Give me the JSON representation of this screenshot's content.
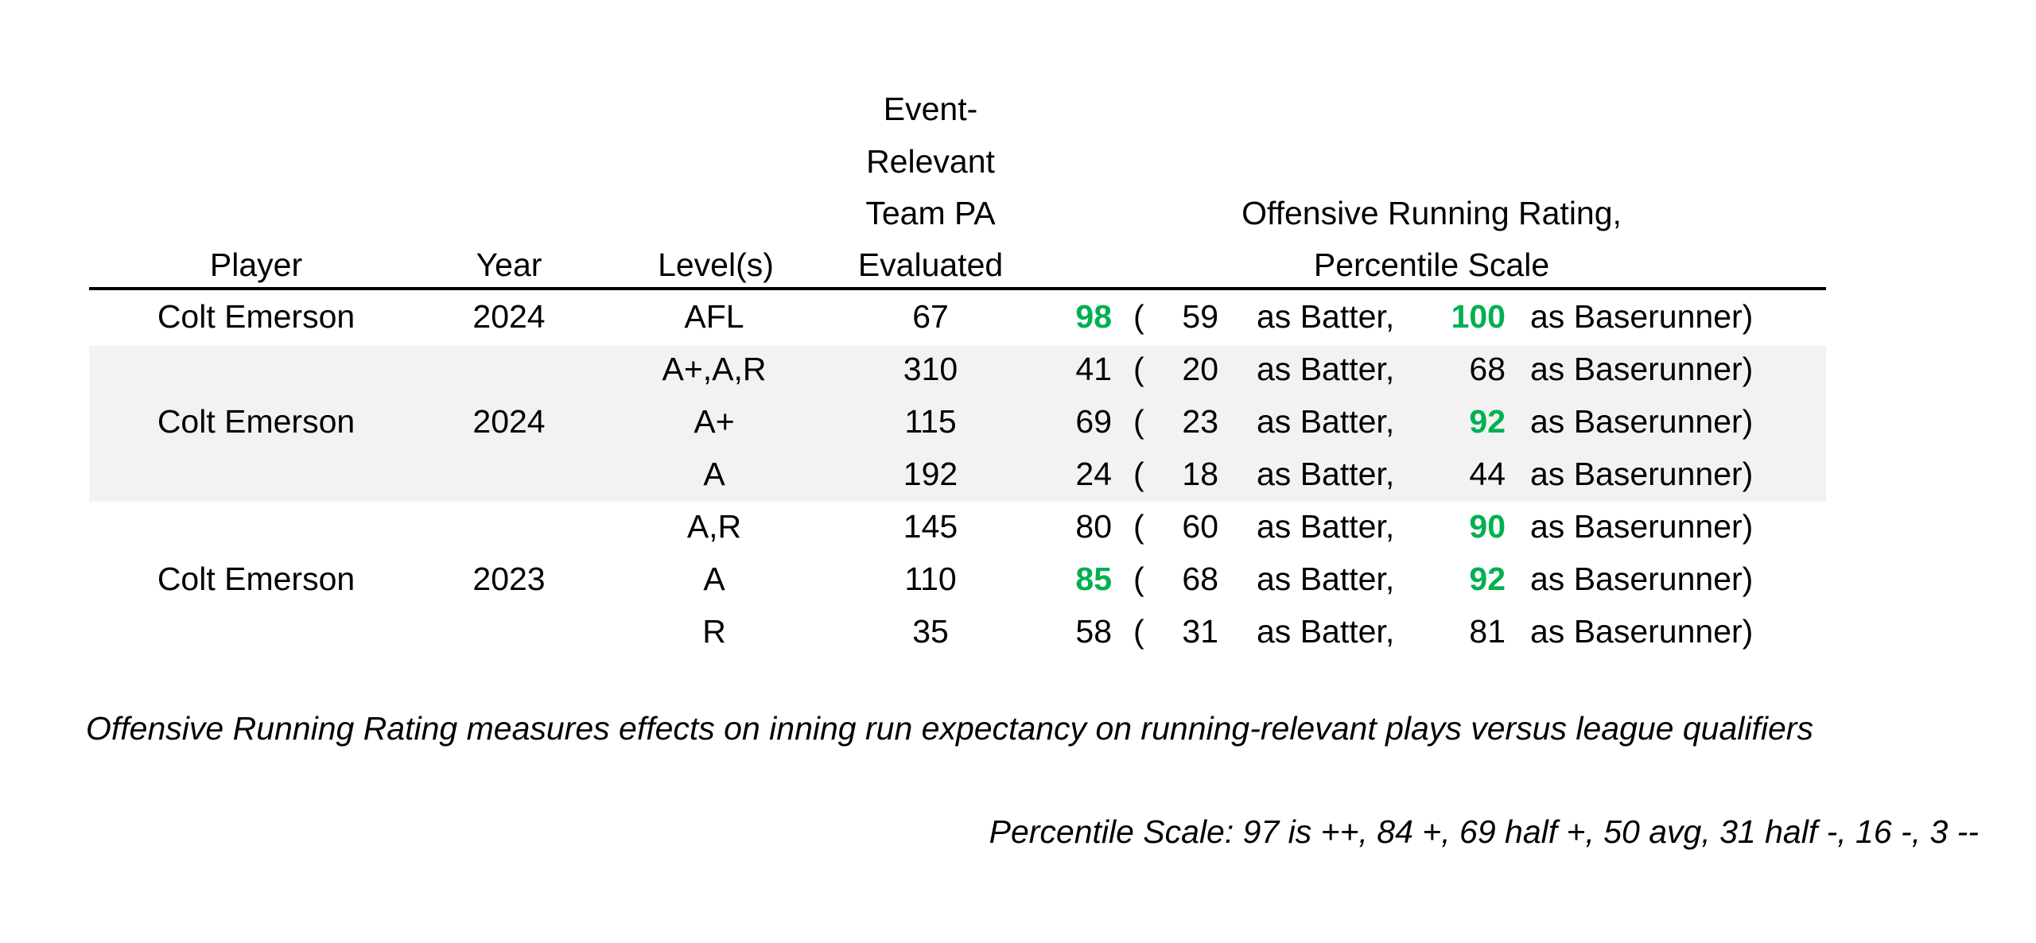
{
  "headers": {
    "player": "Player",
    "year": "Year",
    "levels": "Level(s)",
    "pa_line1": "Event-",
    "pa_line2": "Relevant",
    "pa_line3": "Team PA",
    "pa_line4": "Evaluated",
    "rating_line1": "Offensive Running Rating,",
    "rating_line2": "Percentile Scale"
  },
  "colors": {
    "highlight_green": "#00b050",
    "band_gray": "#f2f2f2",
    "text": "#000000"
  },
  "groups": [
    {
      "player": "Colt Emerson",
      "year": "2024",
      "shaded": false,
      "rows": [
        {
          "level": "AFL",
          "pa": "67",
          "overall": "98",
          "overall_green": true,
          "open": "(",
          "batter": "59",
          "batter_label": "as Batter,",
          "runner": "100",
          "runner_green": true,
          "runner_label": "as Baserunner)"
        }
      ]
    },
    {
      "player": "Colt Emerson",
      "year": "2024",
      "shaded": true,
      "rows": [
        {
          "level": "A+,A,R",
          "pa": "310",
          "overall": "41",
          "overall_green": false,
          "open": "(",
          "batter": "20",
          "batter_label": "as Batter,",
          "runner": "68",
          "runner_green": false,
          "runner_label": "as Baserunner)"
        },
        {
          "level": "A+",
          "pa": "115",
          "overall": "69",
          "overall_green": false,
          "open": "(",
          "batter": "23",
          "batter_label": "as Batter,",
          "runner": "92",
          "runner_green": true,
          "runner_label": "as Baserunner)"
        },
        {
          "level": "A",
          "pa": "192",
          "overall": "24",
          "overall_green": false,
          "open": "(",
          "batter": "18",
          "batter_label": "as Batter,",
          "runner": "44",
          "runner_green": false,
          "runner_label": "as Baserunner)"
        }
      ]
    },
    {
      "player": "Colt Emerson",
      "year": "2023",
      "shaded": false,
      "rows": [
        {
          "level": "A,R",
          "pa": "145",
          "overall": "80",
          "overall_green": false,
          "open": "(",
          "batter": "60",
          "batter_label": "as Batter,",
          "runner": "90",
          "runner_green": true,
          "runner_label": "as Baserunner)"
        },
        {
          "level": "A",
          "pa": "110",
          "overall": "85",
          "overall_green": true,
          "open": "(",
          "batter": "68",
          "batter_label": "as Batter,",
          "runner": "92",
          "runner_green": true,
          "runner_label": "as Baserunner)"
        },
        {
          "level": "R",
          "pa": "35",
          "overall": "58",
          "overall_green": false,
          "open": "(",
          "batter": "31",
          "batter_label": "as Batter,",
          "runner": "81",
          "runner_green": false,
          "runner_label": "as Baserunner)"
        }
      ]
    }
  ],
  "notes": {
    "definition": "Offensive Running Rating measures effects on inning run expectancy on running-relevant plays versus league qualifiers",
    "scale": "Percentile Scale: 97 is ++, 84 +, 69 half +, 50 avg, 31 half -, 16 -, 3 --"
  }
}
